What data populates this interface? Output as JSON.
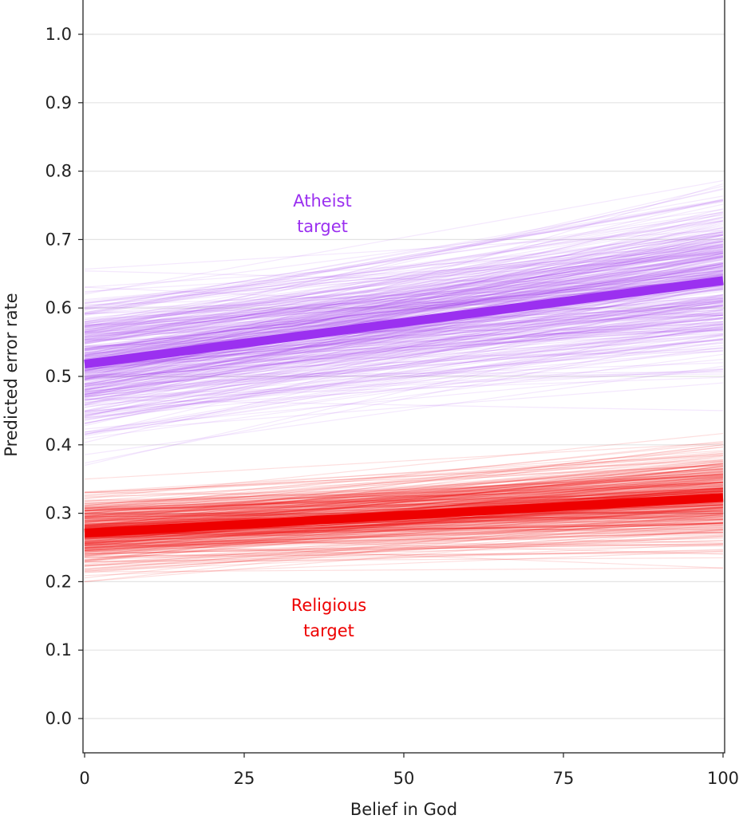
{
  "chart_data": {
    "type": "line",
    "title": "",
    "xlabel": "Belief in God",
    "ylabel": "Predicted error rate",
    "xlim": [
      0,
      100
    ],
    "ylim": [
      -0.05,
      1.05
    ],
    "xticks": [
      0,
      25,
      50,
      75,
      100
    ],
    "xtick_labels": [
      "0",
      "25",
      "50",
      "75",
      "100"
    ],
    "yticks": [
      0.0,
      0.1,
      0.2,
      0.3,
      0.4,
      0.5,
      0.6,
      0.7,
      0.8,
      0.9,
      1.0
    ],
    "ytick_labels": [
      "0.0",
      "0.1",
      "0.2",
      "0.3",
      "0.4",
      "0.5",
      "0.6",
      "0.7",
      "0.8",
      "0.9",
      "1.0"
    ],
    "grid": true,
    "legend": "none",
    "annotations": {
      "atheist": [
        "Atheist",
        "target"
      ],
      "religious": [
        "Religious",
        "target"
      ]
    },
    "series": [
      {
        "name": "Atheist target",
        "color": "#9b30f0",
        "x": [
          0,
          100
        ],
        "y": [
          0.518,
          0.64
        ],
        "draws_y0_range": [
          0.37,
          0.67
        ],
        "draws_y100_range": [
          0.45,
          0.79
        ]
      },
      {
        "name": "Religious target",
        "color": "#ee0000",
        "x": [
          0,
          100
        ],
        "y": [
          0.271,
          0.323
        ],
        "draws_y0_range": [
          0.2,
          0.35
        ],
        "draws_y100_range": [
          0.22,
          0.42
        ]
      }
    ]
  }
}
